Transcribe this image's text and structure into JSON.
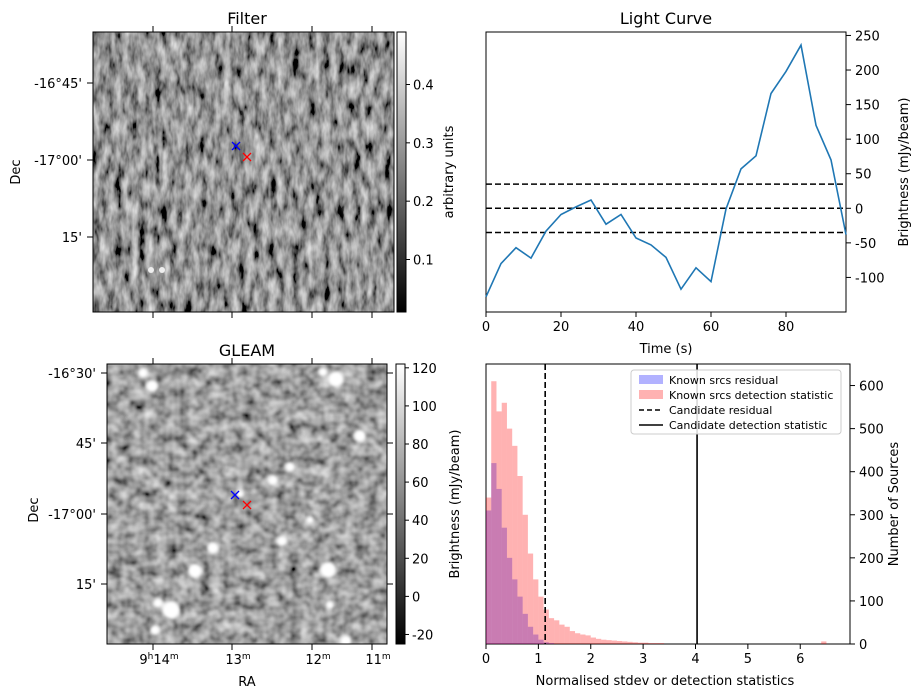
{
  "chart_data": [
    {
      "type": "image",
      "title": "Filter",
      "ylabel": "Dec",
      "ytick_labels": [
        "-16°45'",
        "-17°00'",
        "15'"
      ],
      "colorbar": {
        "label": "arbitrary units",
        "ticks": [
          0.1,
          0.2,
          0.3,
          0.4
        ],
        "range": [
          0.01,
          0.49
        ],
        "colormap": "gray"
      },
      "markers": [
        {
          "symbol": "x",
          "color": "#0000ff"
        },
        {
          "symbol": "x",
          "color": "#ff0000"
        }
      ]
    },
    {
      "type": "line",
      "title": "Light Curve",
      "xlabel": "Time (s)",
      "ylabel": "Brightness (mJy/beam)",
      "xlim": [
        0,
        96
      ],
      "ylim": [
        -150,
        255
      ],
      "x_ticks": [
        0,
        20,
        40,
        60,
        80
      ],
      "y_ticks": [
        -100,
        -50,
        0,
        50,
        100,
        150,
        200,
        250
      ],
      "series": [
        {
          "color": "#1f77b4",
          "x": [
            0,
            4,
            8,
            12,
            16,
            20,
            24,
            28,
            32,
            36,
            40,
            44,
            48,
            52,
            56,
            60,
            64,
            68,
            72,
            76,
            80,
            84,
            88,
            92,
            96
          ],
          "y": [
            -128,
            -80,
            -57,
            -72,
            -33,
            -9,
            2,
            12,
            -23,
            -9,
            -43,
            -53,
            -71,
            -117,
            -86,
            -106,
            -1,
            57,
            76,
            166,
            198,
            236,
            120,
            70,
            -38
          ]
        }
      ],
      "hlines": [
        {
          "y": 35,
          "style": "dashed"
        },
        {
          "y": 0,
          "style": "dashed"
        },
        {
          "y": -35,
          "style": "dashed"
        }
      ]
    },
    {
      "type": "image",
      "title": "GLEAM",
      "xlabel": "RA",
      "ylabel": "Dec",
      "xtick_labels": [
        "9h14m",
        "13m",
        "12m",
        "11m"
      ],
      "ytick_labels": [
        "-16°30'",
        "45'",
        "-17°00'",
        "15'"
      ],
      "colorbar": {
        "label": "Brightness (mJy/beam)",
        "ticks": [
          -20,
          0,
          20,
          40,
          60,
          80,
          100,
          120
        ],
        "range": [
          -25,
          122
        ],
        "colormap": "gray"
      },
      "markers": [
        {
          "symbol": "x",
          "color": "#0000ff"
        },
        {
          "symbol": "x",
          "color": "#ff0000"
        }
      ]
    },
    {
      "type": "histogram",
      "xlabel": "Normalised stdev or detection statistics",
      "ylabel": "Number of Sources",
      "xlim": [
        0,
        6.95
      ],
      "ylim": [
        0,
        650
      ],
      "x_ticks": [
        0,
        1,
        2,
        3,
        4,
        5,
        6
      ],
      "y_ticks": [
        0,
        100,
        200,
        300,
        400,
        500,
        600
      ],
      "legend_position": "top-right",
      "bin_width": 0.1,
      "series": [
        {
          "name": "Known srcs residual",
          "color": "#0000ff",
          "alpha": 0.3,
          "bin_starts": [
            0.0,
            0.1,
            0.2,
            0.3,
            0.4,
            0.5,
            0.6,
            0.7,
            0.8,
            0.9,
            1.0,
            1.1,
            1.2
          ],
          "counts": [
            310,
            420,
            360,
            270,
            200,
            150,
            110,
            70,
            40,
            22,
            10,
            4,
            2
          ]
        },
        {
          "name": "Known srcs detection statistic",
          "color": "#ff0000",
          "alpha": 0.3,
          "bin_starts": [
            0.0,
            0.1,
            0.2,
            0.3,
            0.4,
            0.5,
            0.6,
            0.7,
            0.8,
            0.9,
            1.0,
            1.1,
            1.2,
            1.3,
            1.4,
            1.5,
            1.6,
            1.7,
            1.8,
            1.9,
            2.0,
            2.1,
            2.2,
            2.3,
            2.4,
            2.5,
            2.6,
            2.7,
            2.8,
            2.9,
            3.0,
            3.1,
            3.2,
            3.3,
            6.4
          ],
          "counts": [
            340,
            610,
            540,
            560,
            500,
            460,
            390,
            300,
            210,
            150,
            110,
            80,
            60,
            55,
            45,
            40,
            30,
            25,
            22,
            20,
            15,
            12,
            10,
            9,
            8,
            7,
            6,
            5,
            4,
            3,
            3,
            2,
            2,
            2,
            6
          ]
        }
      ],
      "vlines": [
        {
          "name": "Candidate residual",
          "x": 1.13,
          "style": "dashed"
        },
        {
          "name": "Candidate detection statistic",
          "x": 4.03,
          "style": "solid"
        }
      ]
    }
  ]
}
